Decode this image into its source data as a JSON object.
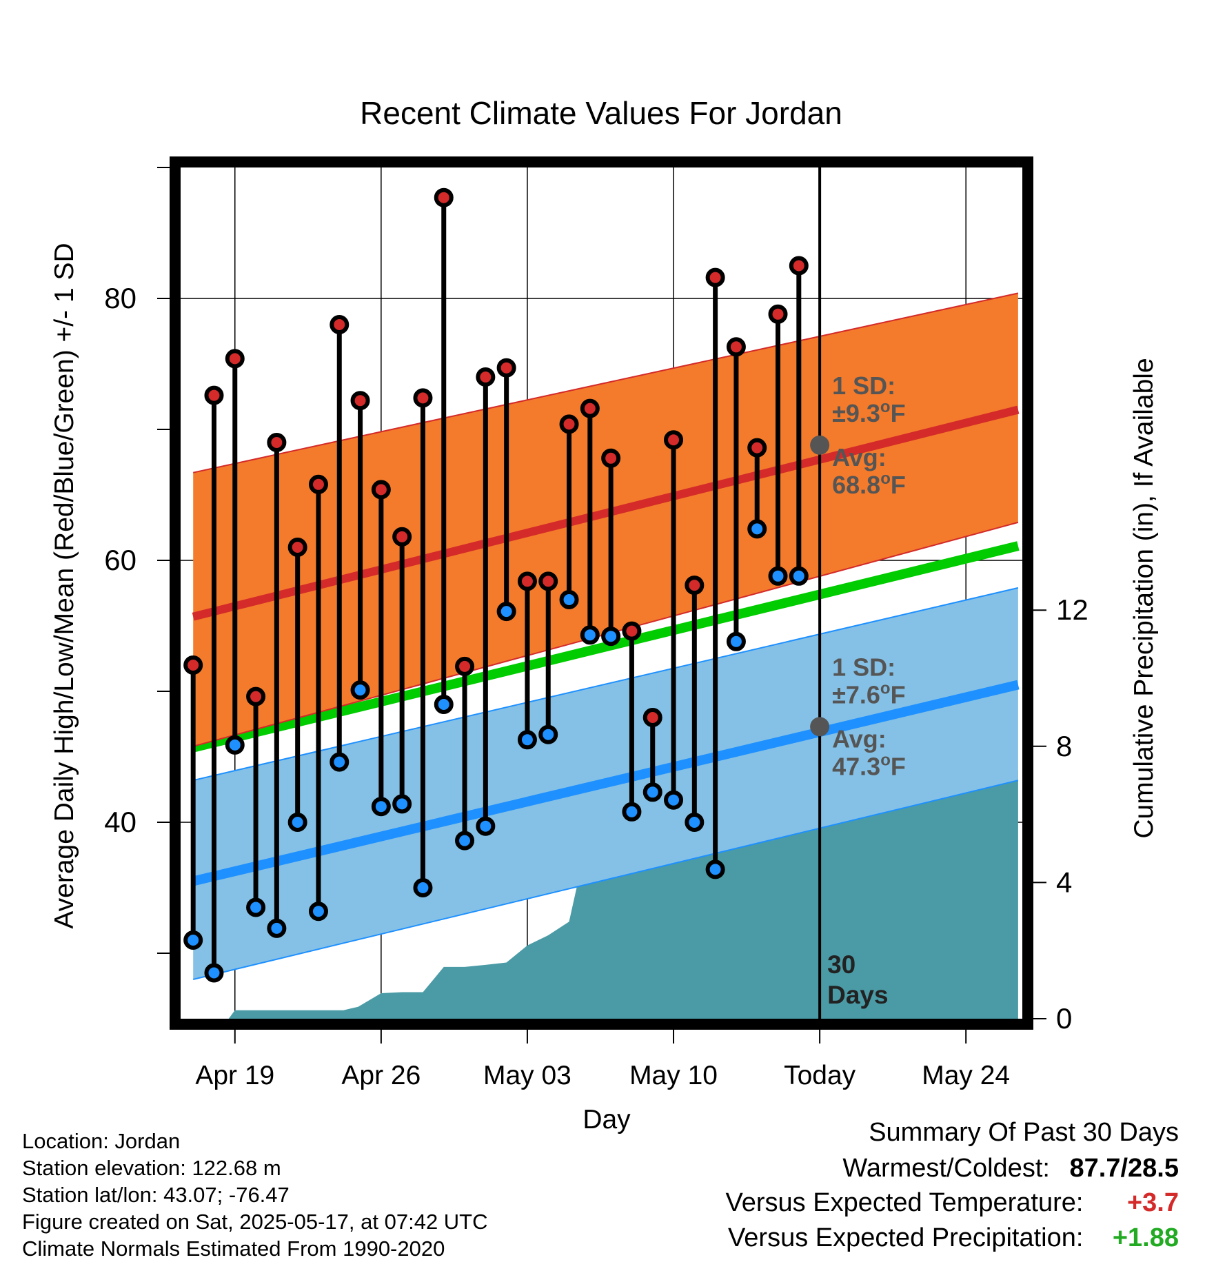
{
  "chart_data": {
    "type": "line",
    "title": "Recent Climate Values For Jordan",
    "xlabel": "Day",
    "ylabel_left": "Average Daily High/Low/Mean (Red/Blue/Green) +/- 1 SD",
    "ylabel_right": "Cumulative Precipitation (in), If Available",
    "x_tick_labels": [
      "Apr 19",
      "Apr 26",
      "May 03",
      "May 10",
      "Today",
      "May 24"
    ],
    "x_tick_days": [
      0,
      7,
      14,
      21,
      28,
      35
    ],
    "x_range_days": [
      -2.6,
      37.7
    ],
    "ylim_left": [
      25,
      90
    ],
    "y_ticks_left": [
      40,
      60,
      80
    ],
    "ylim_right": [
      0,
      25
    ],
    "y_ticks_right": [
      0,
      4,
      8,
      12
    ],
    "grid": true,
    "today_label": "30 Days",
    "daily_values": {
      "days": [
        -2,
        -1,
        0,
        1,
        2,
        3,
        4,
        5,
        6,
        7,
        8,
        9,
        10,
        11,
        12,
        13,
        14,
        15,
        16,
        17,
        18,
        19,
        20,
        21,
        22,
        23,
        24,
        25,
        26,
        27
      ],
      "high": [
        52.0,
        72.6,
        75.4,
        49.6,
        69.0,
        61.0,
        65.8,
        78.0,
        72.2,
        65.4,
        61.8,
        72.4,
        87.7,
        51.9,
        74.0,
        74.7,
        58.4,
        58.4,
        70.4,
        71.6,
        67.8,
        54.6,
        48.0,
        69.2,
        58.1,
        81.6,
        76.3,
        68.6,
        78.8,
        82.5
      ],
      "low": [
        31.0,
        28.5,
        45.9,
        33.5,
        31.9,
        40.0,
        33.2,
        44.6,
        50.1,
        41.2,
        41.4,
        35.0,
        49.0,
        38.6,
        39.7,
        56.1,
        46.3,
        46.7,
        57.0,
        54.3,
        54.2,
        40.8,
        42.3,
        41.7,
        40.0,
        36.4,
        53.8,
        62.4,
        58.8,
        58.8
      ]
    },
    "normals": {
      "days": [
        -2,
        37.5
      ],
      "high_mean": [
        55.7,
        71.5
      ],
      "high_sd_band_low": [
        45.8,
        62.9
      ],
      "high_sd_band_high": [
        66.7,
        80.4
      ],
      "low_mean": [
        35.5,
        50.5
      ],
      "low_sd_band_low": [
        28.0,
        43.2
      ],
      "low_sd_band_high": [
        43.2,
        57.9
      ],
      "daily_mean": [
        45.7,
        61.1
      ]
    },
    "today_stats": {
      "high_sd": "1 SD:",
      "high_sd_val": "±9.3°F",
      "high_avg": "Avg:",
      "high_avg_val": "68.8°F",
      "low_sd": "1 SD:",
      "low_sd_val": "±7.6°F",
      "low_avg": "Avg:",
      "low_avg_val": "47.3°F",
      "high_value": 68.8,
      "low_value": 47.3
    },
    "precipitation": {
      "days": [
        -2,
        -0.3,
        0,
        0.6,
        5.2,
        5.9,
        7.0,
        8.0,
        9.0,
        10.0,
        11.0,
        12.0,
        13.0,
        14.0,
        15.0,
        16.0,
        17.0,
        18.0,
        19.0,
        20.0,
        21.0,
        22.0,
        23.0,
        24.0,
        25.0,
        26.0,
        27.0,
        28.0,
        37.5
      ],
      "values": [
        0,
        0,
        0.25,
        0.25,
        0.25,
        0.35,
        0.75,
        0.78,
        0.78,
        1.52,
        1.52,
        1.58,
        1.65,
        2.15,
        2.45,
        2.85,
        5.6,
        6.45,
        6.48,
        6.95,
        6.95,
        6.95,
        6.97,
        7.1,
        7.15,
        7.15,
        7.3,
        7.3,
        7.3
      ]
    },
    "colors": {
      "high_band": "#f47b2b",
      "high_line": "#d42a2a",
      "low_band": "#85c1e6",
      "low_line": "#1e90ff",
      "mean_line": "#00cc00",
      "precip": "#4a9ba6",
      "high_dot": "#d42a2a",
      "low_dot": "#1e90ff",
      "stat_text": "#555555",
      "today_marker": "#555555"
    }
  },
  "info": {
    "location": "Location: Jordan",
    "elevation": "Station elevation: 122.68 m",
    "latlon": "Station lat/lon: 43.07; -76.47",
    "created": "Figure created on Sat, 2025-05-17, at 07:42 UTC",
    "normals": "Climate Normals Estimated From 1990-2020"
  },
  "summary": {
    "title": "Summary Of Past 30 Days",
    "warmest_coldest_label": "Warmest/Coldest:",
    "warmest_coldest_value": "87.7/28.5",
    "temp_label": "Versus Expected Temperature:",
    "temp_value": "+3.7",
    "temp_color": "#d42a2a",
    "precip_label": "Versus Expected Precipitation:",
    "precip_value": "+1.88",
    "precip_color": "#22aa22"
  }
}
